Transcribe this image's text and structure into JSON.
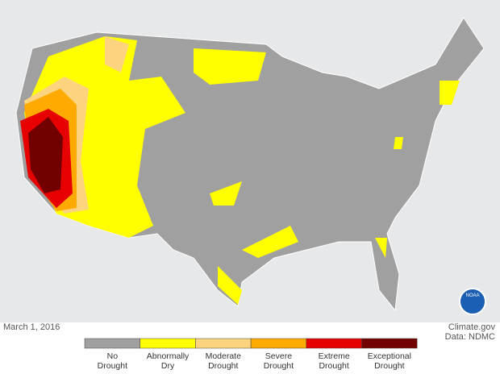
{
  "date": "March 1, 2016",
  "credit": {
    "source": "Climate.gov",
    "data": "Data: NDMC"
  },
  "logo": "NOAA",
  "legend": [
    {
      "label": "No Drought",
      "color": "#a0a0a0"
    },
    {
      "label": "Abnormally Dry",
      "color": "#ffff00"
    },
    {
      "label": "Moderate Drought",
      "color": "#fcd37f"
    },
    {
      "label": "Severe Drought",
      "color": "#ffaa00"
    },
    {
      "label": "Extreme Drought",
      "color": "#e60000"
    },
    {
      "label": "Exceptional Drought",
      "color": "#730000"
    }
  ]
}
